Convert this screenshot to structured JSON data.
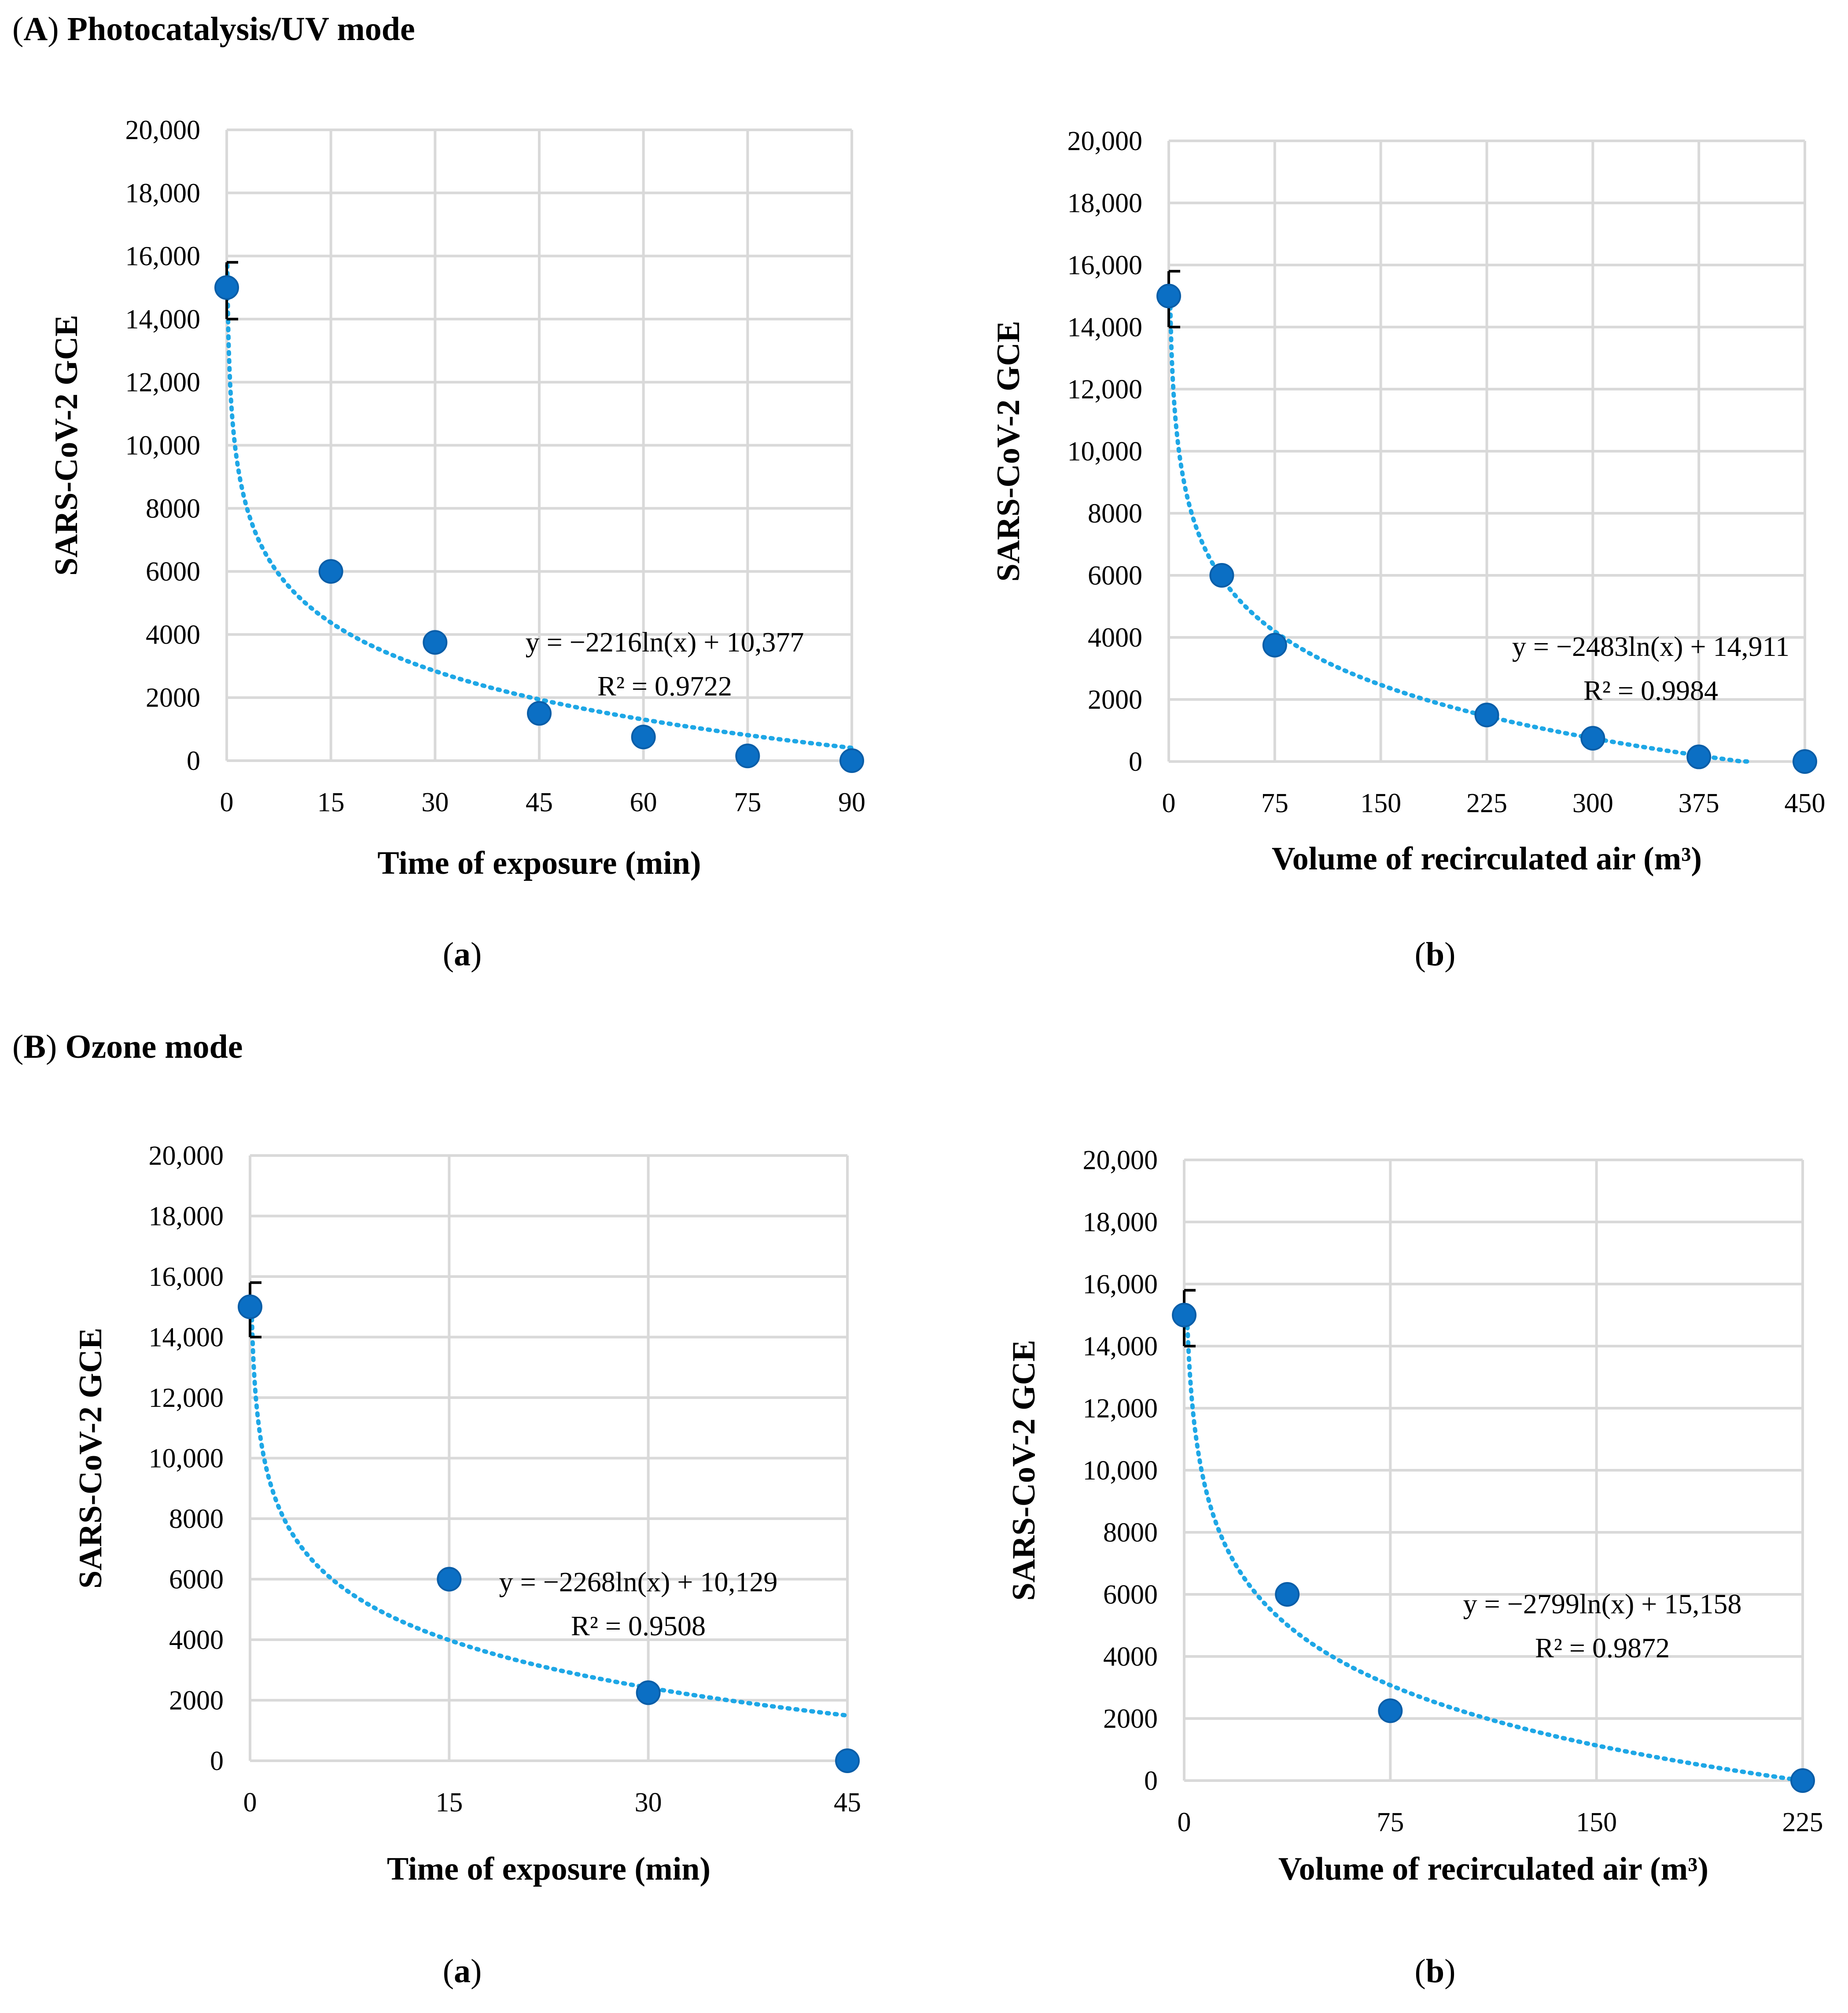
{
  "sections": {
    "A": {
      "letter": "A",
      "title": "Photocatalysis/UV mode"
    },
    "B": {
      "letter": "B",
      "title": "Ozone mode"
    }
  },
  "colors": {
    "points": "#0b6fc4",
    "trendline": "#1ea7e6",
    "grid": "#d9d9d9"
  },
  "chart_data": [
    {
      "id": "A-a",
      "panel_label": "a",
      "type": "scatter",
      "title": "",
      "xlabel": "Time of exposure (min)",
      "ylabel": "SARS-CoV-2 GCE",
      "xlim": [
        0,
        90
      ],
      "ylim": [
        0,
        20000
      ],
      "xticks": [
        0,
        15,
        30,
        45,
        60,
        75,
        90
      ],
      "xtick_labels": [
        "0",
        "15",
        "30",
        "45",
        "60",
        "75",
        "90"
      ],
      "yticks": [
        0,
        2000,
        4000,
        6000,
        8000,
        10000,
        12000,
        14000,
        16000,
        18000,
        20000
      ],
      "ytick_labels": [
        "0",
        "2000",
        "4000",
        "6000",
        "8000",
        "10,000",
        "12,000",
        "14,000",
        "16,000",
        "18,000",
        "20,000"
      ],
      "points": [
        {
          "x": 0,
          "y": 15000
        },
        {
          "x": 15,
          "y": 6000
        },
        {
          "x": 30,
          "y": 3750
        },
        {
          "x": 45,
          "y": 1500
        },
        {
          "x": 60,
          "y": 750
        },
        {
          "x": 75,
          "y": 150
        },
        {
          "x": 90,
          "y": 0
        }
      ],
      "error_bars": [
        {
          "x": 0,
          "low": 14000,
          "high": 15800
        }
      ],
      "trendline": {
        "type": "log",
        "a": -2216,
        "b": 10377,
        "x_start": 0.09,
        "x_end": 90
      },
      "equation": "y = −2216ln(x) + 10,377",
      "r2": "R² = 0.9722"
    },
    {
      "id": "A-b",
      "panel_label": "b",
      "type": "scatter",
      "title": "",
      "xlabel": "Volume of recirculated air (m³)",
      "ylabel": "SARS-CoV-2 GCE",
      "xlim": [
        0,
        450
      ],
      "ylim": [
        0,
        20000
      ],
      "xticks": [
        0,
        75,
        150,
        225,
        300,
        375,
        450
      ],
      "xtick_labels": [
        "0",
        "75",
        "150",
        "225",
        "300",
        "375",
        "450"
      ],
      "yticks": [
        0,
        2000,
        4000,
        6000,
        8000,
        10000,
        12000,
        14000,
        16000,
        18000,
        20000
      ],
      "ytick_labels": [
        "0",
        "2000",
        "4000",
        "6000",
        "8000",
        "10,000",
        "12,000",
        "14,000",
        "16,000",
        "18,000",
        "20,000"
      ],
      "points": [
        {
          "x": 0,
          "y": 15000
        },
        {
          "x": 37.5,
          "y": 6000
        },
        {
          "x": 75,
          "y": 3750
        },
        {
          "x": 225,
          "y": 1500
        },
        {
          "x": 300,
          "y": 750
        },
        {
          "x": 375,
          "y": 150
        },
        {
          "x": 450,
          "y": 0
        }
      ],
      "error_bars": [
        {
          "x": 0,
          "low": 14000,
          "high": 15800
        }
      ],
      "trendline": {
        "type": "log",
        "a": -2483,
        "b": 14911,
        "x_start": 1,
        "x_end": 410
      },
      "equation": "y = −2483ln(x) + 14,911",
      "r2": "R² = 0.9984"
    },
    {
      "id": "B-a",
      "panel_label": "a",
      "type": "scatter",
      "title": "",
      "xlabel": "Time of exposure (min)",
      "ylabel": "SARS-CoV-2 GCE",
      "xlim": [
        0,
        45
      ],
      "ylim": [
        0,
        20000
      ],
      "xticks": [
        0,
        15,
        30,
        45
      ],
      "xtick_labels": [
        "0",
        "15",
        "30",
        "45"
      ],
      "yticks": [
        0,
        2000,
        4000,
        6000,
        8000,
        10000,
        12000,
        14000,
        16000,
        18000,
        20000
      ],
      "ytick_labels": [
        "0",
        "2000",
        "4000",
        "6000",
        "8000",
        "10,000",
        "12,000",
        "14,000",
        "16,000",
        "18,000",
        "20,000"
      ],
      "points": [
        {
          "x": 0,
          "y": 15000
        },
        {
          "x": 15,
          "y": 6000
        },
        {
          "x": 30,
          "y": 2250
        },
        {
          "x": 45,
          "y": 0
        }
      ],
      "error_bars": [
        {
          "x": 0,
          "low": 14000,
          "high": 15800
        }
      ],
      "trendline": {
        "type": "log",
        "a": -2268,
        "b": 10129,
        "x_start": 0.11,
        "x_end": 45
      },
      "equation": "y = −2268ln(x) + 10,129",
      "r2": "R² = 0.9508"
    },
    {
      "id": "B-b",
      "panel_label": "b",
      "type": "scatter",
      "title": "",
      "xlabel": "Volume of recirculated air (m³)",
      "ylabel": "SARS-CoV-2 GCE",
      "xlim": [
        0,
        225
      ],
      "ylim": [
        0,
        20000
      ],
      "xticks": [
        0,
        75,
        150,
        225
      ],
      "xtick_labels": [
        "0",
        "75",
        "150",
        "225"
      ],
      "yticks": [
        0,
        2000,
        4000,
        6000,
        8000,
        10000,
        12000,
        14000,
        16000,
        18000,
        20000
      ],
      "ytick_labels": [
        "0",
        "2000",
        "4000",
        "6000",
        "8000",
        "10,000",
        "12,000",
        "14,000",
        "16,000",
        "18,000",
        "20,000"
      ],
      "points": [
        {
          "x": 0,
          "y": 15000
        },
        {
          "x": 37.5,
          "y": 6000
        },
        {
          "x": 75,
          "y": 2250
        },
        {
          "x": 225,
          "y": 0
        }
      ],
      "error_bars": [
        {
          "x": 0,
          "low": 14000,
          "high": 15800
        }
      ],
      "trendline": {
        "type": "log",
        "a": -2799,
        "b": 15158,
        "x_start": 1.1,
        "x_end": 225
      },
      "equation": "y = −2799ln(x) + 15,158",
      "r2": "R² = 0.9872"
    }
  ]
}
